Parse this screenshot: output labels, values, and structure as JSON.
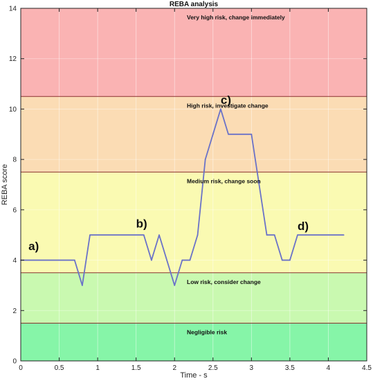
{
  "chart_data": {
    "type": "line",
    "title": "REBA analysis",
    "xlabel": "Time - s",
    "ylabel": "REBA score",
    "xlim": [
      0,
      4.5
    ],
    "ylim": [
      0,
      14
    ],
    "xticks": [
      "0",
      "0.5",
      "1",
      "1.5",
      "2",
      "2.5",
      "3",
      "3.5",
      "4",
      "4.5"
    ],
    "yticks": [
      "0",
      "2",
      "4",
      "6",
      "8",
      "10",
      "12",
      "14"
    ],
    "grid": true,
    "zones": [
      {
        "label": "Negligible risk",
        "from": 0,
        "to": 1.5,
        "color": "#86f5a8"
      },
      {
        "label": "Low risk, consider change",
        "from": 1.5,
        "to": 3.5,
        "color": "#c9f9b0"
      },
      {
        "label": "Medium risk, change soon",
        "from": 3.5,
        "to": 7.5,
        "color": "#fafab2"
      },
      {
        "label": "High risk, investigate change",
        "from": 7.5,
        "to": 10.5,
        "color": "#fbdcb4"
      },
      {
        "label": "Very high risk, change immediately",
        "from": 10.5,
        "to": 14,
        "color": "#fab3b3"
      }
    ],
    "series": [
      {
        "color": "#6a72c8",
        "x": [
          0,
          0.7,
          0.8,
          0.9,
          1.0,
          1.6,
          1.7,
          1.8,
          2.0,
          2.1,
          2.2,
          2.3,
          2.4,
          2.6,
          2.7,
          3.0,
          3.2,
          3.3,
          3.4,
          3.5,
          3.6,
          4.2
        ],
        "y": [
          4,
          4,
          3,
          5,
          5,
          5,
          4,
          5,
          3,
          4,
          4,
          5,
          8,
          10,
          9,
          9,
          5,
          5,
          4,
          4,
          5,
          5
        ]
      }
    ],
    "annotations": [
      {
        "text": "a)",
        "x": 0.1,
        "y": 4.4
      },
      {
        "text": "b)",
        "x": 1.5,
        "y": 5.3
      },
      {
        "text": "c)",
        "x": 2.6,
        "y": 10.2
      },
      {
        "text": "d)",
        "x": 3.6,
        "y": 5.2
      }
    ]
  }
}
